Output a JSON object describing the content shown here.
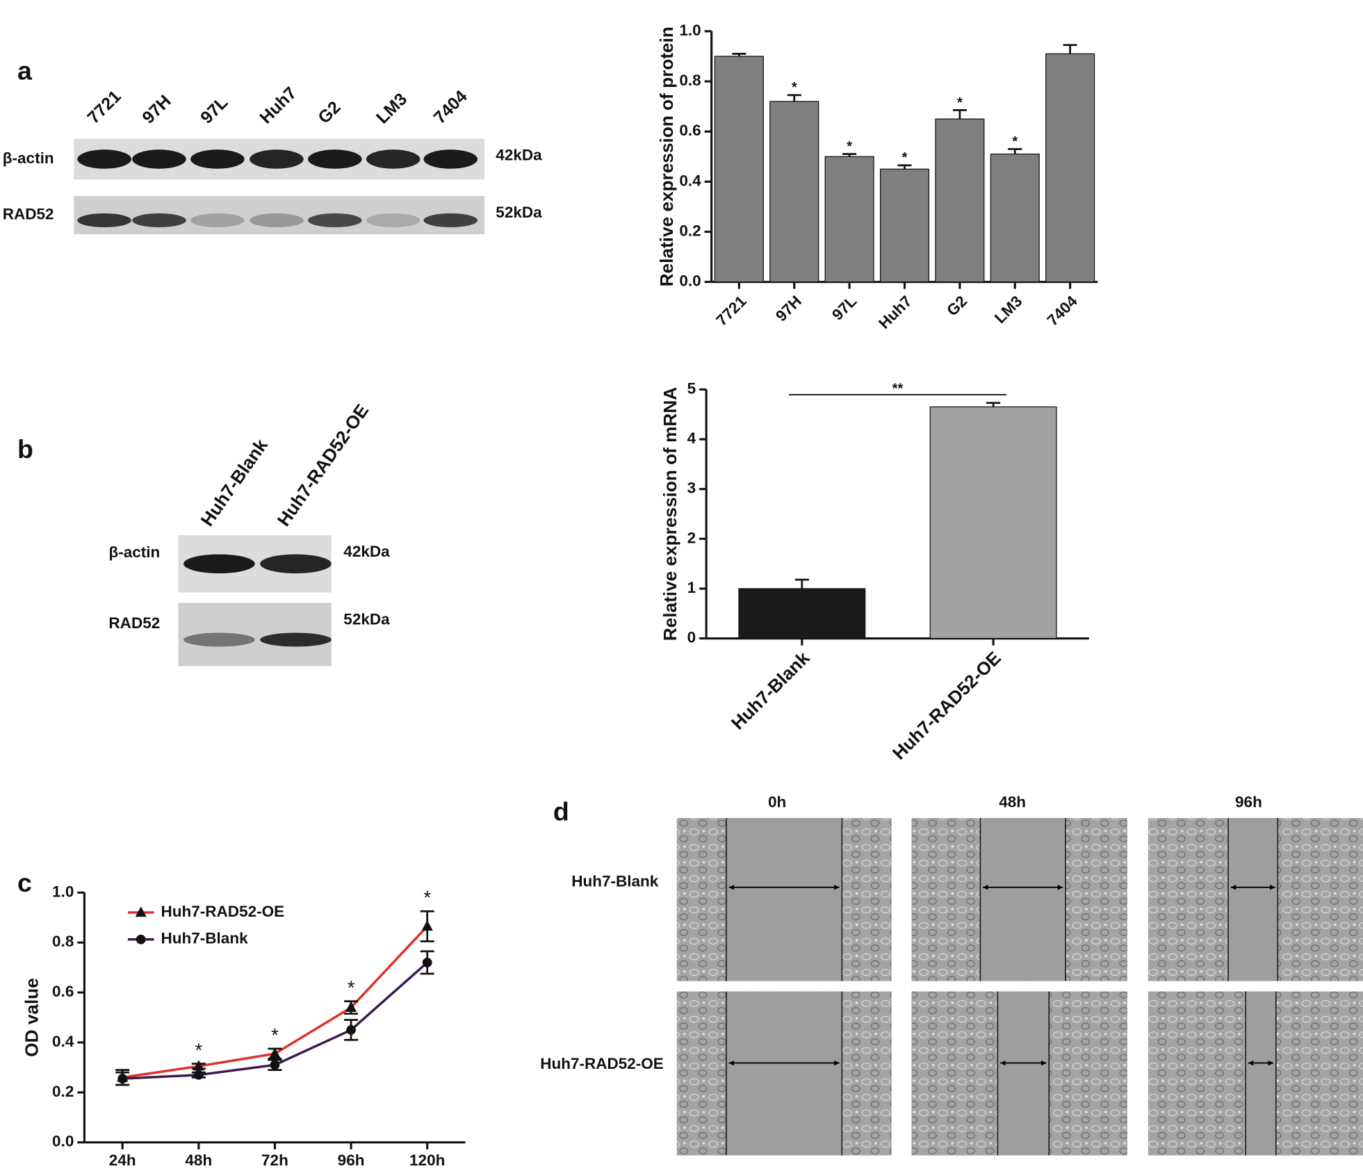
{
  "panel_labels": [
    "a",
    "b",
    "c",
    "d"
  ],
  "blots": {
    "a": {
      "lanes": [
        "7721",
        "97H",
        "97L",
        "Huh7",
        "G2",
        "LM3",
        "7404"
      ],
      "rows": [
        "β-actin",
        "RAD52"
      ],
      "sizes": [
        "42kDa",
        "52kDa"
      ]
    },
    "b": {
      "lanes": [
        "Huh7-Blank",
        "Huh7-RAD52-OE"
      ],
      "rows": [
        "β-actin",
        "RAD52"
      ],
      "sizes": [
        "42kDa",
        "52kDa"
      ]
    }
  },
  "wound_assay": {
    "columns": [
      "0h",
      "48h",
      "96h"
    ],
    "rows": [
      "Huh7-Blank",
      "Huh7-RAD52-OE"
    ]
  },
  "chart_data": [
    {
      "type": "bar",
      "y_label": "Relative expression of protein",
      "categories": [
        "7721",
        "97H",
        "97L",
        "Huh7",
        "G2",
        "LM3",
        "7404"
      ],
      "values": [
        0.9,
        0.72,
        0.5,
        0.45,
        0.65,
        0.51,
        0.91
      ],
      "errors": [
        0.01,
        0.025,
        0.01,
        0.015,
        0.035,
        0.02,
        0.035
      ],
      "significance": [
        null,
        "*",
        "*",
        "*",
        "*",
        "*",
        null
      ],
      "color": "#808080",
      "ylim": [
        0,
        1.0
      ],
      "yticks": [
        {
          "value": 0,
          "label": "0.0"
        },
        0.2,
        0.4,
        0.6,
        0.8,
        {
          "value": 1.0,
          "label": "1.0"
        }
      ]
    },
    {
      "type": "bar",
      "y_label": "Relative expression of mRNA",
      "categories": [
        "Huh7-Blank",
        "Huh7-RAD52-OE"
      ],
      "values": [
        1.0,
        4.65
      ],
      "errors": [
        0.18,
        0.08
      ],
      "significance": "**",
      "colors": [
        "#1a1a1a",
        "#a3a3a3"
      ],
      "ylim": [
        0,
        5
      ],
      "yticks": [
        0,
        1,
        2,
        3,
        4,
        5
      ]
    },
    {
      "type": "line",
      "y_label": "OD value",
      "categories": [
        "24h",
        "48h",
        "72h",
        "96h",
        "120h"
      ],
      "series": [
        {
          "name": "Huh7-RAD52-OE",
          "color": "#e0302a",
          "marker": "triangle",
          "values": [
            0.26,
            0.305,
            0.355,
            0.54,
            0.865
          ],
          "errors": [
            0.03,
            0.01,
            0.02,
            0.025,
            0.06
          ]
        },
        {
          "name": "Huh7-Blank",
          "color": "#3c1a50",
          "marker": "circle",
          "values": [
            0.255,
            0.27,
            0.31,
            0.45,
            0.72
          ],
          "errors": [
            0.025,
            0.01,
            0.02,
            0.04,
            0.045
          ]
        }
      ],
      "significance": [
        null,
        "*",
        "*",
        "*",
        "*"
      ],
      "legend": "upper left",
      "ylim": [
        0,
        1.0
      ],
      "yticks": [
        {
          "value": 0,
          "label": "0.0"
        },
        0.2,
        0.4,
        0.6,
        0.8,
        {
          "value": 1.0,
          "label": "1.0"
        }
      ]
    }
  ]
}
